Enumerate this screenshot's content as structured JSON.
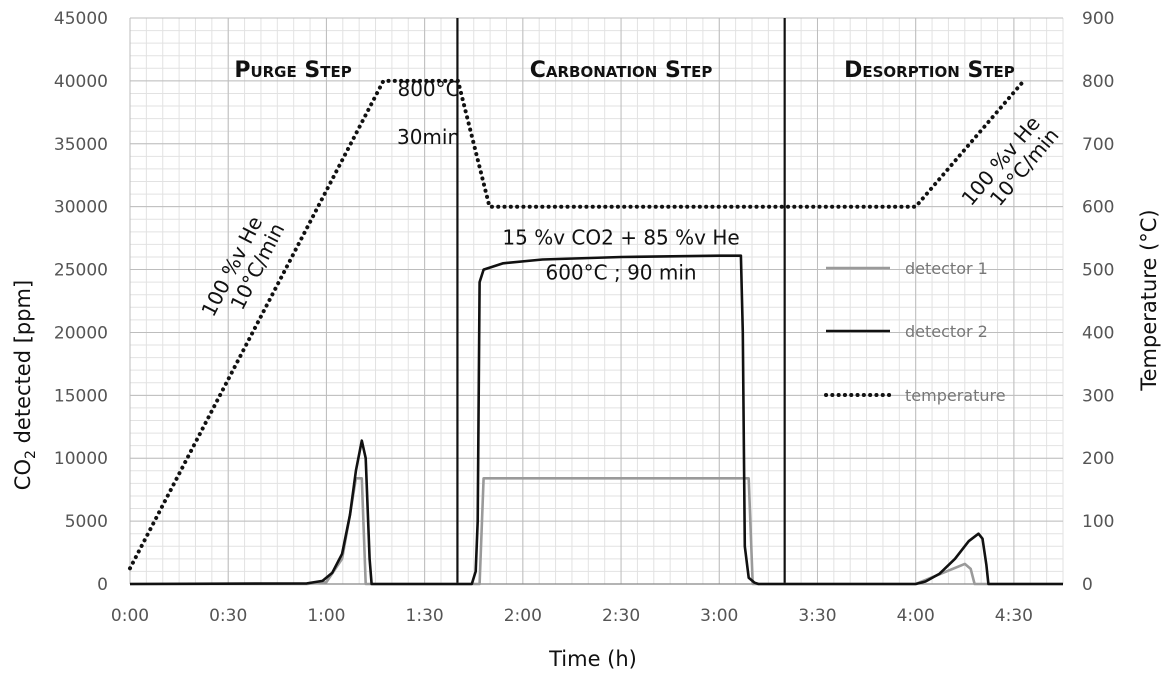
{
  "chart_data": {
    "type": "line",
    "xlabel": "Time (h)",
    "ylabel_prefix": "CO",
    "ylabel_sub": "2",
    "ylabel_suffix": " detected [ppm]",
    "y2label": "Temperature (°C)",
    "xlim": [
      0,
      4.75
    ],
    "ylim": [
      0,
      45000
    ],
    "y2lim": [
      0,
      900
    ],
    "x_ticks": [
      0,
      0.5,
      1,
      1.5,
      2,
      2.5,
      3,
      3.5,
      4,
      4.5
    ],
    "x_tick_labels": [
      "0:00",
      "0:30",
      "1:00",
      "1:30",
      "2:00",
      "2:30",
      "3:00",
      "3:30",
      "4:00",
      "4:30"
    ],
    "y_ticks": [
      0,
      5000,
      10000,
      15000,
      20000,
      25000,
      30000,
      35000,
      40000,
      45000
    ],
    "y2_ticks": [
      0,
      100,
      200,
      300,
      400,
      500,
      600,
      700,
      800,
      900
    ],
    "grid": true,
    "legend_position": "right",
    "step_dividers": [
      1.667,
      3.333
    ],
    "steps": [
      {
        "label": "Purge Step",
        "x": 0.83
      },
      {
        "label": "Carbonation Step",
        "x": 2.5
      },
      {
        "label": "Desorption Step",
        "x": 4.07
      }
    ],
    "annotations": [
      {
        "text": "800°C",
        "x": 1.52,
        "y": 38800
      },
      {
        "text": "30min",
        "x": 1.52,
        "y": 35000
      },
      {
        "text": "15 %v CO2 + 85 %v He",
        "x": 2.5,
        "y": 27000
      },
      {
        "text": "600°C ; 90 min",
        "x": 2.5,
        "y": 24200
      },
      {
        "text": "100 %v He",
        "x": 0.55,
        "y": 25000,
        "rotate": -63
      },
      {
        "text": "10°C/min",
        "x": 0.68,
        "y": 25000,
        "rotate": -63
      },
      {
        "text": "100 %v He",
        "x": 4.46,
        "y": 33300,
        "rotate": -50
      },
      {
        "text": "10°C/min",
        "x": 4.58,
        "y": 32800,
        "rotate": -50
      }
    ],
    "series": [
      {
        "name": "detector 1",
        "axis": "left",
        "color": "#9a9a9a",
        "style": "solid",
        "points": [
          [
            0,
            0
          ],
          [
            0.9,
            0
          ],
          [
            1.0,
            150
          ],
          [
            1.08,
            2000
          ],
          [
            1.12,
            5500
          ],
          [
            1.15,
            8400
          ],
          [
            1.18,
            8400
          ],
          [
            1.2,
            0
          ],
          [
            1.75,
            0
          ],
          [
            1.78,
            0
          ],
          [
            1.8,
            8400
          ],
          [
            3.15,
            8400
          ],
          [
            3.17,
            0
          ],
          [
            4.0,
            0
          ],
          [
            4.25,
            1600
          ],
          [
            4.28,
            1200
          ],
          [
            4.3,
            0
          ],
          [
            4.75,
            0
          ]
        ]
      },
      {
        "name": "detector 2",
        "axis": "left",
        "color": "#111111",
        "style": "solid",
        "points": [
          [
            0,
            0
          ],
          [
            0.9,
            50
          ],
          [
            0.98,
            250
          ],
          [
            1.03,
            900
          ],
          [
            1.08,
            2400
          ],
          [
            1.12,
            5500
          ],
          [
            1.15,
            9000
          ],
          [
            1.18,
            11400
          ],
          [
            1.2,
            10000
          ],
          [
            1.22,
            2000
          ],
          [
            1.23,
            0
          ],
          [
            1.74,
            0
          ],
          [
            1.76,
            1000
          ],
          [
            1.77,
            5000
          ],
          [
            1.78,
            24000
          ],
          [
            1.8,
            25000
          ],
          [
            1.9,
            25500
          ],
          [
            2.1,
            25800
          ],
          [
            2.5,
            26000
          ],
          [
            3.0,
            26100
          ],
          [
            3.11,
            26100
          ],
          [
            3.12,
            20000
          ],
          [
            3.13,
            3000
          ],
          [
            3.15,
            500
          ],
          [
            3.18,
            100
          ],
          [
            3.2,
            0
          ],
          [
            4.0,
            0
          ],
          [
            4.05,
            200
          ],
          [
            4.12,
            800
          ],
          [
            4.2,
            2000
          ],
          [
            4.27,
            3400
          ],
          [
            4.32,
            4000
          ],
          [
            4.34,
            3600
          ],
          [
            4.36,
            1500
          ],
          [
            4.37,
            0
          ],
          [
            4.75,
            0
          ]
        ]
      },
      {
        "name": "temperature",
        "axis": "right",
        "color": "#111111",
        "style": "dotted",
        "points": [
          [
            0,
            25
          ],
          [
            1.29,
            800
          ],
          [
            1.67,
            800
          ],
          [
            1.83,
            600
          ],
          [
            4.0,
            600
          ],
          [
            4.55,
            800
          ]
        ]
      }
    ]
  }
}
